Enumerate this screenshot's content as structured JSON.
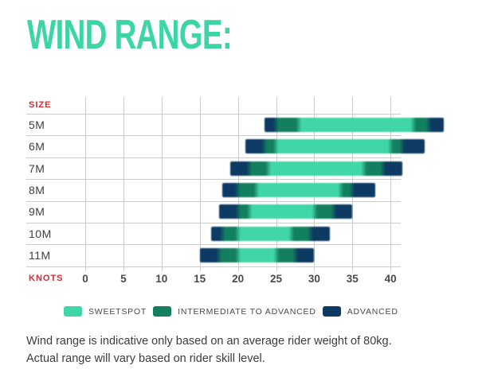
{
  "title": "WIND RANGE:",
  "title_color": "#3CD5A4",
  "chart_data": {
    "type": "bar",
    "orientation": "horizontal-range",
    "title": "WIND RANGE:",
    "y_axis_header": "SIZE",
    "x_axis_label": "KNOTS",
    "x_ticks": [
      0,
      5,
      10,
      15,
      20,
      25,
      30,
      35,
      40
    ],
    "grid": true,
    "segment_order": [
      "advanced",
      "intermediate",
      "sweetspot",
      "intermediate",
      "advanced"
    ],
    "categories": [
      "5M",
      "6M",
      "7M",
      "8M",
      "9M",
      "10M",
      "11M"
    ],
    "rows": [
      {
        "size": "5M",
        "stops_knots": [
          23.5,
          25,
          28,
          43,
          45,
          47
        ]
      },
      {
        "size": "6M",
        "stops_knots": [
          21,
          23.5,
          25,
          40,
          41.5,
          44.5
        ]
      },
      {
        "size": "7M",
        "stops_knots": [
          19,
          21.5,
          24,
          36.5,
          39,
          41.5
        ]
      },
      {
        "size": "8M",
        "stops_knots": [
          18,
          20,
          22.5,
          33.5,
          35,
          38
        ]
      },
      {
        "size": "9M",
        "stops_knots": [
          17.5,
          20,
          21.5,
          30,
          32.5,
          35
        ]
      },
      {
        "size": "10M",
        "stops_knots": [
          16.5,
          18,
          20,
          27,
          29.5,
          32
        ]
      },
      {
        "size": "11M",
        "stops_knots": [
          15,
          17.5,
          20,
          25,
          27.5,
          30
        ]
      }
    ],
    "colors": {
      "sweetspot": "#41D6A7",
      "intermediate": "#12805F",
      "advanced": "#0C3A63",
      "grid": "#CCCCCC",
      "axis_red": "#D42C2C",
      "tick_text": "#4A4A4A",
      "row_label_text": "#3F3F3F"
    }
  },
  "legend": {
    "items": [
      {
        "key": "sweetspot",
        "label": "SWEETSPOT",
        "color": "#41D6A7"
      },
      {
        "key": "intermediate",
        "label": "INTERMEDIATE TO ADVANCED",
        "color": "#12805F"
      },
      {
        "key": "advanced",
        "label": "ADVANCED",
        "color": "#0C3A63"
      }
    ]
  },
  "footer": {
    "line1": "Wind range is indicative only based on an average rider weight of 80kg.",
    "line2": "Actual range will vary based on rider skill level."
  }
}
